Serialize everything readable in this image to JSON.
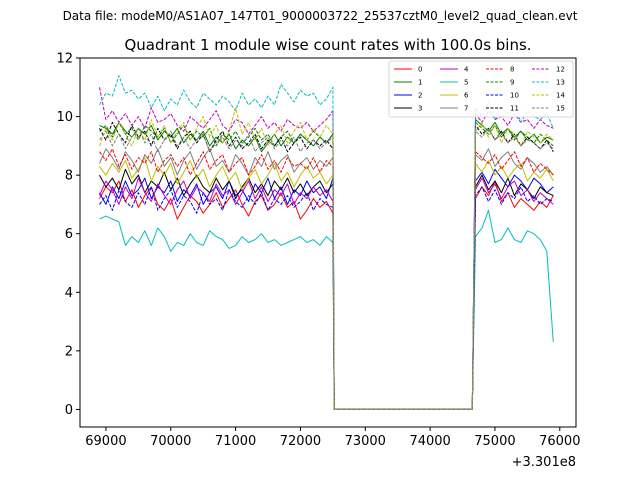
{
  "chart_data": {
    "type": "line",
    "suptitle": "Data file: modeM0/AS1A07_147T01_9000003722_25537cztM0_level2_quad_clean.evt",
    "title": "Quadrant 1 module wise count rates with 100.0s bins.",
    "xlabel": "",
    "ylabel": "",
    "x_offset_label": "+3.301e8",
    "xlim": [
      68600,
      76250
    ],
    "ylim": [
      -0.6,
      12
    ],
    "xticks": [
      69000,
      70000,
      71000,
      72000,
      73000,
      74000,
      75000,
      76000
    ],
    "xtick_labels": [
      "69000",
      "70000",
      "71000",
      "72000",
      "73000",
      "74000",
      "75000",
      "76000"
    ],
    "yticks": [
      0,
      2,
      4,
      6,
      8,
      10,
      12
    ],
    "ytick_labels": [
      "0",
      "2",
      "4",
      "6",
      "8",
      "10",
      "12"
    ],
    "legend_position": "top-right",
    "bin_seconds": 100,
    "gap": {
      "start": 72520,
      "end": 74650
    },
    "segment1": {
      "start": 68900,
      "end": 72500,
      "step": 100
    },
    "segment2": {
      "start": 74700,
      "end": 75900,
      "step": 100
    },
    "series": [
      {
        "name": "0",
        "color": "#ff0000",
        "dashed": false,
        "seg1": [
          7.2,
          7.6,
          7.4,
          7.8,
          7.1,
          7.5,
          6.9,
          7.3,
          7.6,
          7.0,
          6.8,
          7.2,
          6.5,
          6.9,
          7.3,
          7.1,
          6.7,
          7.0,
          7.4,
          6.9,
          7.2,
          7.5,
          7.0,
          6.6,
          7.1,
          7.3,
          6.8,
          7.0,
          7.4,
          6.9,
          7.1,
          6.5,
          6.8,
          7.2,
          6.9,
          7.1,
          6.7
        ],
        "seg2": [
          7.2,
          7.6,
          7.3,
          7.8,
          7.1,
          7.4,
          6.9,
          7.2,
          7.0,
          6.8,
          7.1,
          6.9,
          7.3
        ]
      },
      {
        "name": "1",
        "color": "#008000",
        "dashed": false,
        "seg1": [
          9.7,
          9.6,
          9.4,
          9.8,
          9.5,
          9.3,
          9.6,
          9.4,
          9.7,
          9.2,
          9.5,
          9.3,
          9.6,
          9.1,
          9.4,
          9.2,
          9.5,
          9.0,
          9.3,
          9.1,
          9.4,
          8.9,
          9.2,
          9.0,
          9.3,
          8.8,
          9.1,
          9.4,
          9.0,
          9.3,
          9.1,
          9.4,
          9.2,
          9.0,
          9.3,
          9.1,
          9.4
        ],
        "seg2": [
          9.9,
          9.7,
          9.5,
          9.8,
          9.4,
          9.6,
          9.3,
          9.5,
          9.2,
          9.4,
          9.1,
          9.3,
          9.2
        ]
      },
      {
        "name": "2",
        "color": "#0000ff",
        "dashed": false,
        "seg1": [
          7.4,
          7.0,
          7.6,
          7.2,
          7.8,
          7.3,
          7.5,
          7.9,
          7.2,
          7.6,
          7.4,
          7.8,
          7.1,
          7.5,
          7.3,
          7.7,
          7.0,
          7.4,
          7.6,
          7.2,
          7.8,
          7.3,
          7.5,
          7.1,
          7.7,
          7.4,
          7.9,
          7.2,
          7.6,
          7.0,
          7.5,
          7.3,
          7.8,
          7.4,
          7.6,
          7.2,
          7.9
        ],
        "seg2": [
          7.8,
          8.1,
          7.7,
          8.2,
          7.9,
          7.6,
          8.0,
          7.8,
          7.5,
          7.9,
          7.7,
          7.4,
          7.6
        ]
      },
      {
        "name": "3",
        "color": "#000000",
        "dashed": false,
        "seg1": [
          8.0,
          7.6,
          7.9,
          7.5,
          8.2,
          7.7,
          8.0,
          7.4,
          7.8,
          7.6,
          8.1,
          7.5,
          7.9,
          7.3,
          7.7,
          8.0,
          7.6,
          7.4,
          7.9,
          7.5,
          7.8,
          7.2,
          7.6,
          7.9,
          7.4,
          7.7,
          7.3,
          7.8,
          7.5,
          7.9,
          7.4,
          7.7,
          7.3,
          7.6,
          7.8,
          7.4,
          7.7
        ],
        "seg2": [
          7.6,
          8.0,
          7.5,
          7.8,
          7.4,
          7.9,
          7.3,
          7.7,
          7.5,
          7.2,
          7.6,
          7.4,
          7.3
        ]
      },
      {
        "name": "4",
        "color": "#bf00bf",
        "dashed": false,
        "seg1": [
          7.3,
          7.8,
          7.5,
          7.0,
          7.6,
          7.2,
          7.9,
          7.4,
          7.1,
          7.7,
          7.3,
          7.0,
          7.5,
          7.8,
          7.2,
          7.6,
          7.4,
          7.1,
          7.7,
          7.3,
          7.5,
          7.0,
          7.4,
          7.8,
          7.2,
          7.6,
          7.1,
          7.5,
          7.3,
          7.7,
          7.0,
          7.4,
          7.2,
          7.6,
          7.3,
          7.5,
          7.1
        ],
        "seg2": [
          7.5,
          7.9,
          7.4,
          7.7,
          7.2,
          7.6,
          7.8,
          7.3,
          7.5,
          7.1,
          7.4,
          7.2,
          7.0
        ]
      },
      {
        "name": "5",
        "color": "#00bfbf",
        "dashed": false,
        "seg1": [
          6.5,
          6.6,
          6.5,
          6.4,
          5.6,
          5.9,
          5.7,
          6.1,
          5.6,
          6.2,
          5.9,
          5.4,
          5.7,
          5.6,
          6.0,
          5.7,
          5.6,
          6.1,
          5.9,
          5.8,
          5.5,
          5.6,
          5.9,
          5.7,
          5.8,
          6.0,
          5.7,
          5.8,
          5.6,
          5.7,
          5.8,
          5.9,
          5.7,
          5.8,
          5.6,
          5.9,
          5.7
        ],
        "seg2": [
          5.9,
          6.2,
          6.8,
          5.7,
          5.8,
          6.2,
          5.8,
          5.7,
          6.1,
          6.0,
          5.8,
          5.4,
          2.3
        ]
      },
      {
        "name": "6",
        "color": "#bfbf00",
        "dashed": false,
        "seg1": [
          8.3,
          8.0,
          8.4,
          8.1,
          8.5,
          7.9,
          8.2,
          8.6,
          7.8,
          8.3,
          8.0,
          8.4,
          7.7,
          8.1,
          8.5,
          7.9,
          8.2,
          7.6,
          8.0,
          8.3,
          7.8,
          8.1,
          7.5,
          7.9,
          8.2,
          7.7,
          8.0,
          8.4,
          7.8,
          8.1,
          7.6,
          8.0,
          8.3,
          7.9,
          8.1,
          7.7,
          8.0
        ],
        "seg2": [
          8.4,
          8.1,
          8.5,
          8.0,
          8.3,
          7.9,
          8.2,
          8.4,
          7.8,
          8.1,
          7.9,
          8.2,
          7.8
        ]
      },
      {
        "name": "7",
        "color": "#808080",
        "dashed": false,
        "seg1": [
          8.4,
          8.9,
          8.6,
          8.2,
          8.8,
          8.5,
          8.1,
          8.7,
          8.4,
          8.9,
          8.3,
          8.6,
          8.0,
          8.5,
          8.8,
          8.2,
          8.6,
          8.9,
          8.3,
          8.5,
          8.1,
          8.7,
          8.4,
          8.0,
          8.6,
          8.3,
          8.8,
          8.2,
          8.5,
          8.7,
          8.1,
          8.4,
          8.6,
          8.2,
          8.5,
          8.3,
          8.6
        ],
        "seg2": [
          8.7,
          8.5,
          8.9,
          8.3,
          8.6,
          8.8,
          8.4,
          8.2,
          8.6,
          8.4,
          8.1,
          8.3,
          8.0
        ]
      },
      {
        "name": "8",
        "color": "#ff0000",
        "dashed": true,
        "seg1": [
          8.8,
          8.5,
          8.9,
          8.3,
          8.7,
          8.2,
          8.6,
          8.4,
          8.8,
          8.1,
          8.5,
          8.7,
          8.3,
          8.6,
          8.0,
          8.4,
          8.8,
          8.2,
          8.5,
          8.7,
          8.1,
          8.4,
          8.6,
          8.0,
          8.3,
          8.7,
          8.2,
          8.5,
          8.1,
          8.6,
          8.3,
          8.4,
          8.2,
          8.6,
          8.1,
          8.5,
          8.3
        ],
        "seg2": [
          8.8,
          8.6,
          8.4,
          8.7,
          8.2,
          8.5,
          8.8,
          8.3,
          8.6,
          8.1,
          8.4,
          8.2,
          8.0
        ]
      },
      {
        "name": "9",
        "color": "#008000",
        "dashed": true,
        "seg1": [
          9.5,
          9.7,
          9.3,
          9.8,
          9.4,
          9.6,
          9.2,
          9.7,
          9.5,
          9.3,
          9.6,
          9.1,
          9.4,
          9.7,
          9.2,
          9.5,
          9.3,
          9.6,
          9.0,
          9.4,
          9.2,
          9.5,
          9.1,
          9.3,
          9.6,
          9.2,
          9.4,
          9.0,
          9.3,
          9.5,
          9.1,
          9.4,
          9.2,
          9.5,
          9.3,
          9.1,
          9.4
        ],
        "seg2": [
          9.8,
          9.6,
          9.4,
          9.7,
          9.3,
          9.6,
          9.2,
          9.5,
          9.3,
          9.1,
          9.4,
          9.2,
          9.0
        ]
      },
      {
        "name": "10",
        "color": "#0000ff",
        "dashed": true,
        "seg1": [
          7.0,
          7.3,
          6.8,
          7.5,
          7.1,
          6.9,
          7.4,
          7.0,
          7.6,
          6.8,
          7.2,
          7.5,
          6.9,
          7.3,
          7.1,
          6.7,
          7.4,
          7.0,
          7.2,
          6.8,
          7.5,
          7.1,
          6.9,
          7.3,
          7.0,
          7.4,
          6.8,
          7.2,
          7.0,
          7.3,
          6.9,
          7.1,
          7.4,
          6.8,
          7.2,
          7.0,
          6.9
        ],
        "seg2": [
          7.3,
          7.6,
          7.1,
          7.5,
          7.0,
          7.4,
          7.2,
          7.6,
          7.1,
          7.3,
          7.0,
          7.2,
          7.1
        ]
      },
      {
        "name": "11",
        "color": "#000000",
        "dashed": true,
        "seg1": [
          9.6,
          9.2,
          9.8,
          9.4,
          9.1,
          9.7,
          9.3,
          9.5,
          9.0,
          9.6,
          9.2,
          9.4,
          8.9,
          9.3,
          9.5,
          9.1,
          9.4,
          8.8,
          9.2,
          9.5,
          9.0,
          9.3,
          8.9,
          9.1,
          9.4,
          8.9,
          9.2,
          9.0,
          9.3,
          8.8,
          9.1,
          9.3,
          8.9,
          9.2,
          9.0,
          9.2,
          8.9
        ],
        "seg2": [
          9.7,
          9.4,
          9.6,
          9.2,
          9.5,
          9.1,
          9.4,
          9.0,
          9.3,
          9.1,
          8.9,
          9.2,
          8.8
        ]
      },
      {
        "name": "12",
        "color": "#bf00bf",
        "dashed": true,
        "seg1": [
          11.0,
          9.9,
          10.2,
          9.8,
          10.1,
          9.7,
          10.0,
          9.6,
          10.3,
          9.8,
          9.9,
          10.1,
          9.7,
          9.5,
          10.0,
          9.8,
          9.6,
          9.9,
          10.2,
          9.7,
          9.5,
          9.9,
          9.8,
          9.4,
          9.7,
          10.0,
          9.6,
          9.8,
          9.5,
          9.9,
          9.7,
          9.6,
          9.8,
          9.5,
          9.7,
          9.9,
          10.2
        ],
        "seg2": [
          10.1,
          9.8,
          10.2,
          9.9,
          10.0,
          9.7,
          10.1,
          9.8,
          9.9,
          9.6,
          9.9,
          9.7,
          9.6
        ]
      },
      {
        "name": "13",
        "color": "#00bfbf",
        "dashed": true,
        "seg1": [
          10.4,
          10.8,
          10.7,
          11.4,
          10.8,
          10.9,
          10.6,
          10.8,
          10.3,
          10.7,
          10.2,
          10.6,
          10.4,
          10.9,
          10.5,
          10.3,
          10.8,
          10.6,
          10.4,
          10.7,
          10.5,
          10.2,
          10.8,
          10.4,
          10.6,
          10.3,
          10.7,
          10.4,
          11.1,
          10.8,
          10.5,
          10.9,
          10.7,
          10.8,
          10.4,
          10.6,
          11.0
        ],
        "seg2": [
          10.3,
          10.0,
          10.5,
          9.9,
          10.3,
          10.1,
          10.4,
          9.8,
          10.2,
          10.0,
          9.9,
          10.1,
          9.6
        ]
      },
      {
        "name": "14",
        "color": "#bfbf00",
        "dashed": true,
        "seg1": [
          9.0,
          9.6,
          9.2,
          9.8,
          9.4,
          9.0,
          9.6,
          9.2,
          9.9,
          9.3,
          9.7,
          9.1,
          9.5,
          9.8,
          9.2,
          9.6,
          10.0,
          9.3,
          9.7,
          9.1,
          9.5,
          10.3,
          9.4,
          9.8,
          9.2,
          9.6,
          9.0,
          9.4,
          9.7,
          9.1,
          9.5,
          9.8,
          9.2,
          9.6,
          9.3,
          9.7,
          9.4
        ],
        "seg2": [
          9.5,
          9.8,
          9.3,
          9.7,
          9.1,
          9.6,
          9.4,
          9.0,
          9.5,
          9.3,
          9.1,
          9.4,
          9.2
        ]
      },
      {
        "name": "15",
        "color": "#808080",
        "dashed": true,
        "seg1": [
          9.2,
          9.5,
          9.0,
          9.4,
          8.9,
          9.3,
          9.6,
          9.1,
          9.4,
          8.8,
          9.2,
          9.5,
          9.0,
          9.3,
          8.9,
          9.2,
          9.4,
          8.8,
          9.1,
          9.3,
          8.9,
          9.2,
          9.0,
          9.4,
          8.8,
          9.1,
          9.3,
          8.9,
          9.2,
          9.0,
          9.3,
          8.8,
          9.1,
          9.2,
          8.9,
          9.1,
          9.3
        ],
        "seg2": [
          9.5,
          9.3,
          9.6,
          9.2,
          9.4,
          9.1,
          9.3,
          9.0,
          9.2,
          9.1,
          8.9,
          9.1,
          8.9
        ]
      }
    ]
  }
}
